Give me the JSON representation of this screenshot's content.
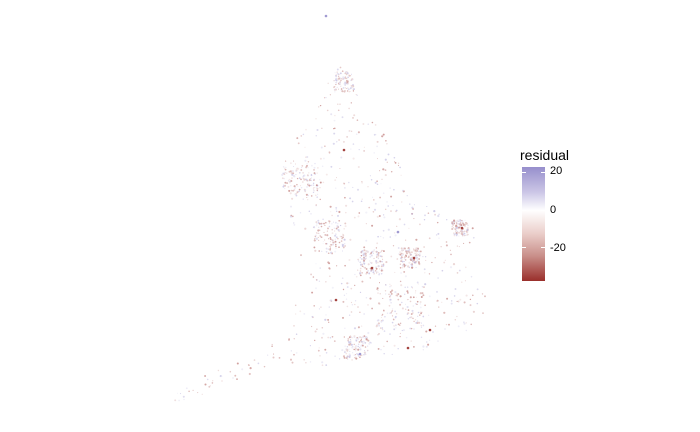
{
  "legend": {
    "title": "residual",
    "ticks": [
      {
        "value": 20,
        "label": "20"
      },
      {
        "value": 0,
        "label": "0"
      },
      {
        "value": -20,
        "label": "-20"
      }
    ],
    "range": [
      -34,
      25
    ]
  },
  "colors": {
    "high": "#978fcc",
    "mid": "#ffffff",
    "low": "#9a2f2b"
  }
}
